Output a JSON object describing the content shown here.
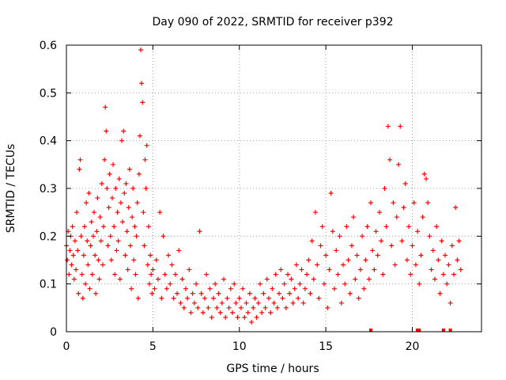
{
  "chart_data": {
    "type": "scatter",
    "title": "Day 090 of 2022, SRMTID for receiver p392",
    "xlabel": "GPS time / hours",
    "ylabel": "SRMTID / TECUs",
    "xlim": [
      0,
      24
    ],
    "ylim": [
      0,
      0.6
    ],
    "xticks": [
      0,
      5,
      10,
      15,
      20
    ],
    "yticks": [
      0,
      0.1,
      0.2,
      0.3,
      0.4,
      0.5,
      0.6
    ],
    "ytick_labels": [
      "0",
      "0.1",
      "0.2",
      "0.3",
      "0.4",
      "0.5",
      "0.6"
    ],
    "grid": true,
    "legend": "none",
    "series_color": "#ff0000",
    "marker": "plus",
    "series": [
      {
        "name": "SRMTID",
        "points": [
          [
            0.0,
            0.18
          ],
          [
            0.05,
            0.15
          ],
          [
            0.1,
            0.21
          ],
          [
            0.15,
            0.12
          ],
          [
            0.2,
            0.17
          ],
          [
            0.25,
            0.2
          ],
          [
            0.3,
            0.14
          ],
          [
            0.35,
            0.22
          ],
          [
            0.4,
            0.16
          ],
          [
            0.45,
            0.11
          ],
          [
            0.5,
            0.19
          ],
          [
            0.55,
            0.13
          ],
          [
            0.6,
            0.25
          ],
          [
            0.65,
            0.17
          ],
          [
            0.7,
            0.08
          ],
          [
            0.75,
            0.34
          ],
          [
            0.8,
            0.36
          ],
          [
            0.85,
            0.2
          ],
          [
            0.9,
            0.12
          ],
          [
            0.95,
            0.07
          ],
          [
            1.0,
            0.16
          ],
          [
            1.05,
            0.22
          ],
          [
            1.1,
            0.1
          ],
          [
            1.15,
            0.27
          ],
          [
            1.2,
            0.19
          ],
          [
            1.25,
            0.14
          ],
          [
            1.3,
            0.29
          ],
          [
            1.35,
            0.09
          ],
          [
            1.4,
            0.18
          ],
          [
            1.45,
            0.23
          ],
          [
            1.5,
            0.12
          ],
          [
            1.55,
            0.2
          ],
          [
            1.6,
            0.25
          ],
          [
            1.65,
            0.16
          ],
          [
            1.7,
            0.08
          ],
          [
            1.75,
            0.21
          ],
          [
            1.8,
            0.28
          ],
          [
            1.85,
            0.15
          ],
          [
            1.9,
            0.11
          ],
          [
            1.95,
            0.24
          ],
          [
            2.0,
            0.19
          ],
          [
            2.05,
            0.31
          ],
          [
            2.1,
            0.14
          ],
          [
            2.15,
            0.22
          ],
          [
            2.2,
            0.36
          ],
          [
            2.25,
            0.47
          ],
          [
            2.3,
            0.42
          ],
          [
            2.35,
            0.3
          ],
          [
            2.4,
            0.18
          ],
          [
            2.45,
            0.26
          ],
          [
            2.5,
            0.33
          ],
          [
            2.55,
            0.2
          ],
          [
            2.6,
            0.15
          ],
          [
            2.65,
            0.28
          ],
          [
            2.7,
            0.35
          ],
          [
            2.75,
            0.22
          ],
          [
            2.8,
            0.12
          ],
          [
            2.85,
            0.3
          ],
          [
            2.9,
            0.17
          ],
          [
            2.95,
            0.25
          ],
          [
            3.0,
            0.19
          ],
          [
            3.05,
            0.32
          ],
          [
            3.1,
            0.11
          ],
          [
            3.15,
            0.27
          ],
          [
            3.2,
            0.4
          ],
          [
            3.25,
            0.23
          ],
          [
            3.3,
            0.42
          ],
          [
            3.35,
            0.29
          ],
          [
            3.4,
            0.16
          ],
          [
            3.45,
            0.31
          ],
          [
            3.5,
            0.21
          ],
          [
            3.55,
            0.13
          ],
          [
            3.6,
            0.26
          ],
          [
            3.65,
            0.34
          ],
          [
            3.7,
            0.18
          ],
          [
            3.75,
            0.09
          ],
          [
            3.8,
            0.24
          ],
          [
            3.85,
            0.3
          ],
          [
            3.9,
            0.15
          ],
          [
            3.95,
            0.22
          ],
          [
            4.0,
            0.12
          ],
          [
            4.05,
            0.2
          ],
          [
            4.1,
            0.27
          ],
          [
            4.15,
            0.07
          ],
          [
            4.2,
            0.33
          ],
          [
            4.25,
            0.41
          ],
          [
            4.3,
            0.59
          ],
          [
            4.35,
            0.52
          ],
          [
            4.4,
            0.48
          ],
          [
            4.45,
            0.25
          ],
          [
            4.5,
            0.18
          ],
          [
            4.55,
            0.36
          ],
          [
            4.6,
            0.3
          ],
          [
            4.65,
            0.39
          ],
          [
            4.7,
            0.14
          ],
          [
            4.75,
            0.22
          ],
          [
            4.8,
            0.1
          ],
          [
            4.85,
            0.16
          ],
          [
            4.9,
            0.12
          ],
          [
            4.95,
            0.08
          ],
          [
            5.0,
            0.13
          ],
          [
            5.1,
            0.09
          ],
          [
            5.2,
            0.15
          ],
          [
            5.3,
            0.11
          ],
          [
            5.4,
            0.25
          ],
          [
            5.5,
            0.07
          ],
          [
            5.6,
            0.2
          ],
          [
            5.7,
            0.12
          ],
          [
            5.8,
            0.09
          ],
          [
            5.9,
            0.16
          ],
          [
            6.0,
            0.1
          ],
          [
            6.1,
            0.14
          ],
          [
            6.2,
            0.07
          ],
          [
            6.3,
            0.12
          ],
          [
            6.4,
            0.08
          ],
          [
            6.5,
            0.17
          ],
          [
            6.6,
            0.06
          ],
          [
            6.7,
            0.11
          ],
          [
            6.8,
            0.05
          ],
          [
            6.9,
            0.09
          ],
          [
            7.0,
            0.07
          ],
          [
            7.1,
            0.13
          ],
          [
            7.2,
            0.04
          ],
          [
            7.3,
            0.08
          ],
          [
            7.4,
            0.06
          ],
          [
            7.5,
            0.1
          ],
          [
            7.6,
            0.05
          ],
          [
            7.7,
            0.21
          ],
          [
            7.8,
            0.08
          ],
          [
            7.9,
            0.04
          ],
          [
            8.0,
            0.07
          ],
          [
            8.1,
            0.12
          ],
          [
            8.2,
            0.05
          ],
          [
            8.3,
            0.09
          ],
          [
            8.4,
            0.03
          ],
          [
            8.5,
            0.07
          ],
          [
            8.6,
            0.1
          ],
          [
            8.7,
            0.05
          ],
          [
            8.8,
            0.08
          ],
          [
            8.9,
            0.04
          ],
          [
            9.0,
            0.06
          ],
          [
            9.1,
            0.11
          ],
          [
            9.2,
            0.03
          ],
          [
            9.3,
            0.07
          ],
          [
            9.4,
            0.05
          ],
          [
            9.5,
            0.09
          ],
          [
            9.6,
            0.04
          ],
          [
            9.7,
            0.1
          ],
          [
            9.8,
            0.06
          ],
          [
            9.9,
            0.03
          ],
          [
            10.0,
            0.07
          ],
          [
            10.1,
            0.05
          ],
          [
            10.2,
            0.09
          ],
          [
            10.3,
            0.03
          ],
          [
            10.4,
            0.06
          ],
          [
            10.5,
            0.04
          ],
          [
            10.6,
            0.08
          ],
          [
            10.7,
            0.02
          ],
          [
            10.8,
            0.05
          ],
          [
            10.9,
            0.07
          ],
          [
            11.0,
            0.03
          ],
          [
            11.1,
            0.06
          ],
          [
            11.2,
            0.1
          ],
          [
            11.3,
            0.04
          ],
          [
            11.4,
            0.08
          ],
          [
            11.5,
            0.05
          ],
          [
            11.6,
            0.11
          ],
          [
            11.7,
            0.07
          ],
          [
            11.8,
            0.04
          ],
          [
            11.9,
            0.09
          ],
          [
            12.0,
            0.06
          ],
          [
            12.1,
            0.12
          ],
          [
            12.2,
            0.05
          ],
          [
            12.3,
            0.08
          ],
          [
            12.4,
            0.13
          ],
          [
            12.5,
            0.07
          ],
          [
            12.6,
            0.1
          ],
          [
            12.7,
            0.05
          ],
          [
            12.8,
            0.12
          ],
          [
            12.9,
            0.08
          ],
          [
            13.0,
            0.11
          ],
          [
            13.1,
            0.06
          ],
          [
            13.2,
            0.09
          ],
          [
            13.3,
            0.14
          ],
          [
            13.4,
            0.07
          ],
          [
            13.5,
            0.1
          ],
          [
            13.6,
            0.13
          ],
          [
            13.7,
            0.06
          ],
          [
            13.8,
            0.09
          ],
          [
            13.9,
            0.12
          ],
          [
            14.0,
            0.15
          ],
          [
            14.1,
            0.08
          ],
          [
            14.2,
            0.19
          ],
          [
            14.3,
            0.11
          ],
          [
            14.4,
            0.25
          ],
          [
            14.5,
            0.14
          ],
          [
            14.6,
            0.07
          ],
          [
            14.7,
            0.18
          ],
          [
            14.8,
            0.22
          ],
          [
            14.9,
            0.1
          ],
          [
            15.0,
            0.16
          ],
          [
            15.1,
            0.05
          ],
          [
            15.2,
            0.13
          ],
          [
            15.3,
            0.29
          ],
          [
            15.4,
            0.21
          ],
          [
            15.5,
            0.09
          ],
          [
            15.6,
            0.17
          ],
          [
            15.7,
            0.12
          ],
          [
            15.8,
            0.2
          ],
          [
            15.9,
            0.06
          ],
          [
            16.0,
            0.14
          ],
          [
            16.1,
            0.1
          ],
          [
            16.2,
            0.22
          ],
          [
            16.3,
            0.15
          ],
          [
            16.4,
            0.08
          ],
          [
            16.5,
            0.18
          ],
          [
            16.6,
            0.24
          ],
          [
            16.7,
            0.11
          ],
          [
            16.8,
            0.16
          ],
          [
            16.9,
            0.07
          ],
          [
            17.0,
            0.13
          ],
          [
            17.1,
            0.2
          ],
          [
            17.2,
            0.09
          ],
          [
            17.3,
            0.15
          ],
          [
            17.4,
            0.22
          ],
          [
            17.5,
            0.11
          ],
          [
            17.6,
            0.27
          ],
          [
            17.7,
            0.17
          ],
          [
            17.8,
            0.13
          ],
          [
            17.9,
            0.21
          ],
          [
            18.0,
            0.16
          ],
          [
            18.1,
            0.25
          ],
          [
            18.2,
            0.19
          ],
          [
            18.3,
            0.12
          ],
          [
            18.4,
            0.3
          ],
          [
            18.5,
            0.22
          ],
          [
            18.6,
            0.43
          ],
          [
            18.7,
            0.36
          ],
          [
            18.8,
            0.18
          ],
          [
            18.9,
            0.27
          ],
          [
            19.0,
            0.14
          ],
          [
            19.1,
            0.24
          ],
          [
            19.2,
            0.35
          ],
          [
            19.3,
            0.43
          ],
          [
            19.4,
            0.19
          ],
          [
            19.5,
            0.26
          ],
          [
            19.6,
            0.31
          ],
          [
            19.7,
            0.15
          ],
          [
            19.8,
            0.22
          ],
          [
            19.9,
            0.12
          ],
          [
            20.0,
            0.18
          ],
          [
            20.1,
            0.27
          ],
          [
            20.2,
            0.14
          ],
          [
            20.3,
            0.21
          ],
          [
            20.4,
            0.1
          ],
          [
            20.5,
            0.16
          ],
          [
            20.6,
            0.24
          ],
          [
            20.7,
            0.33
          ],
          [
            20.8,
            0.32
          ],
          [
            20.9,
            0.27
          ],
          [
            21.0,
            0.2
          ],
          [
            21.1,
            0.13
          ],
          [
            21.2,
            0.17
          ],
          [
            21.3,
            0.11
          ],
          [
            21.4,
            0.22
          ],
          [
            21.5,
            0.15
          ],
          [
            21.6,
            0.08
          ],
          [
            21.7,
            0.19
          ],
          [
            21.8,
            0.12
          ],
          [
            21.9,
            0.16
          ],
          [
            22.0,
            0.1
          ],
          [
            22.1,
            0.14
          ],
          [
            22.2,
            0.06
          ],
          [
            22.3,
            0.18
          ],
          [
            22.4,
            0.12
          ],
          [
            22.5,
            0.26
          ],
          [
            22.6,
            0.15
          ],
          [
            22.7,
            0.19
          ],
          [
            22.8,
            0.13
          ]
        ]
      }
    ],
    "baseline_markers_x": [
      17.6,
      20.3,
      20.4,
      21.8,
      22.2
    ]
  }
}
